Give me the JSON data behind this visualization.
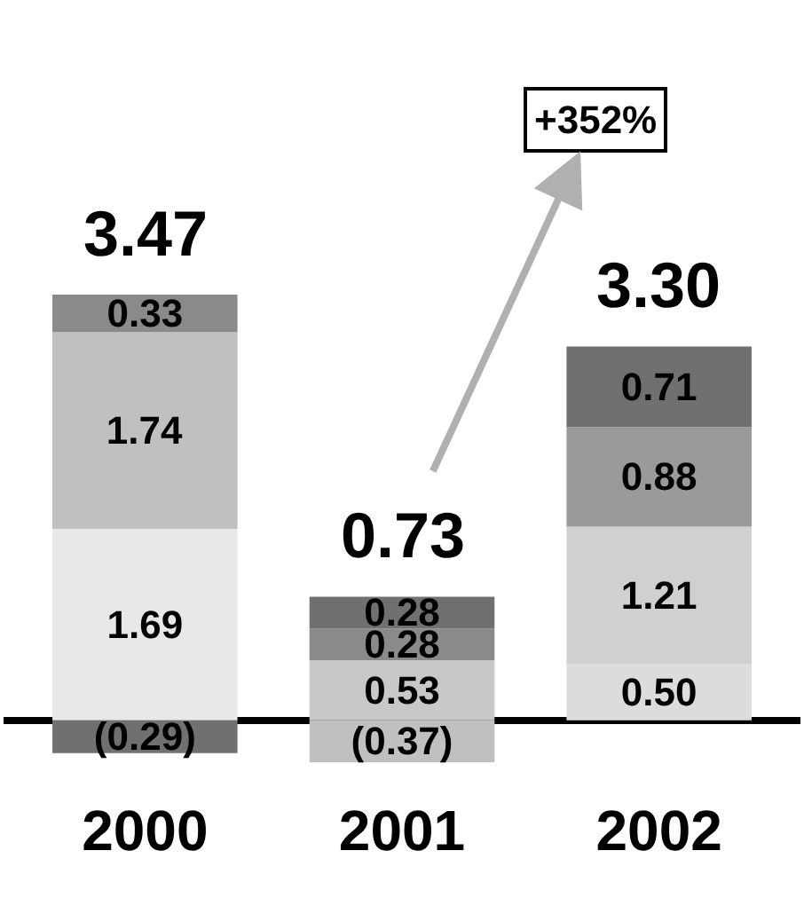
{
  "chart_data": {
    "type": "bar",
    "stacked": true,
    "categories": [
      "2000",
      "2001",
      "2002"
    ],
    "series": [
      {
        "values": [
          -0.29,
          -0.37,
          null
        ],
        "colors": [
          "#707070",
          "#c0c0c0",
          "#c0c0c0"
        ],
        "value_labels": [
          "(0.29)",
          "(0.37)",
          null
        ]
      },
      {
        "values": [
          1.69,
          0.53,
          0.5
        ],
        "colors": [
          "#e8e8e8",
          "#c8c8c8",
          "#dcdcdc"
        ],
        "value_labels": [
          "1.69",
          "0.53",
          "0.50"
        ]
      },
      {
        "values": [
          1.74,
          0.28,
          1.21
        ],
        "colors": [
          "#c0c0c0",
          "#8a8a8a",
          "#d0d0d0"
        ],
        "value_labels": [
          "1.74",
          "0.28",
          "1.21"
        ]
      },
      {
        "values": [
          0.33,
          0.28,
          0.88
        ],
        "colors": [
          "#8a8a8a",
          "#707070",
          "#9a9a9a"
        ],
        "value_labels": [
          "0.33",
          "0.28",
          "0.88"
        ]
      },
      {
        "values": [
          null,
          null,
          0.71
        ],
        "colors": [
          "#707070",
          "#707070",
          "#707070"
        ],
        "value_labels": [
          null,
          null,
          "0.71"
        ]
      }
    ],
    "totals": [
      "3.47",
      "0.73",
      "3.30"
    ],
    "annotations": [
      "+352%"
    ],
    "tick_labels": "x"
  }
}
